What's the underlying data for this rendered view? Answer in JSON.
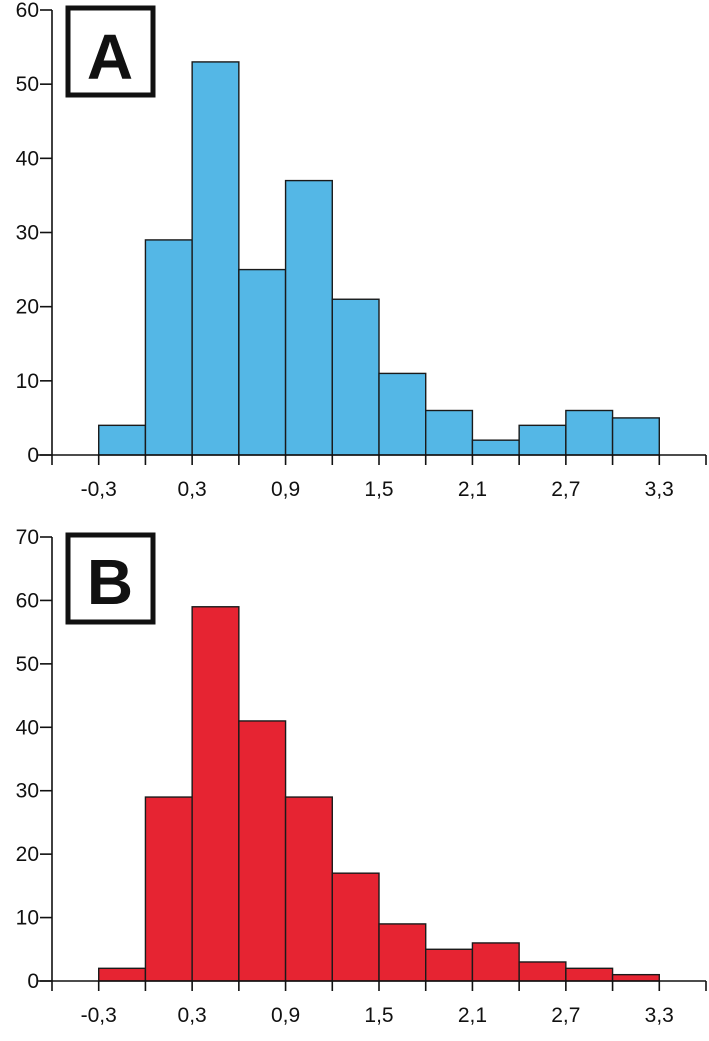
{
  "chart_data": [
    {
      "type": "bar",
      "panel_label": "A",
      "color": "#54b7e6",
      "x_tick_labels": [
        "-0,3",
        "0,3",
        "0,9",
        "1,5",
        "2,1",
        "2,7",
        "3,3"
      ],
      "y_tick_labels": [
        "0",
        "10",
        "20",
        "30",
        "40",
        "50",
        "60"
      ],
      "bin_edges": [
        -0.3,
        -0.0,
        0.3,
        0.6,
        0.9,
        1.2,
        1.5,
        1.8,
        2.1,
        2.4,
        2.7,
        3.0,
        3.3
      ],
      "values": [
        4,
        29,
        53,
        25,
        37,
        21,
        11,
        6,
        2,
        4,
        6,
        5
      ],
      "ylim": [
        0,
        60
      ],
      "xlim": [
        -0.6,
        3.6
      ],
      "grid": false
    },
    {
      "type": "bar",
      "panel_label": "B",
      "color": "#e62432",
      "x_tick_labels": [
        "-0,3",
        "0,3",
        "0,9",
        "1,5",
        "2,1",
        "2,7",
        "3,3"
      ],
      "y_tick_labels": [
        "0",
        "10",
        "20",
        "30",
        "40",
        "50",
        "60",
        "70"
      ],
      "bin_edges": [
        -0.3,
        -0.0,
        0.3,
        0.6,
        0.9,
        1.2,
        1.5,
        1.8,
        2.1,
        2.4,
        2.7,
        3.0,
        3.3
      ],
      "values": [
        2,
        29,
        59,
        41,
        29,
        17,
        9,
        5,
        6,
        3,
        2,
        1
      ],
      "ylim": [
        0,
        70
      ],
      "xlim": [
        -0.6,
        3.6
      ],
      "grid": false
    }
  ]
}
